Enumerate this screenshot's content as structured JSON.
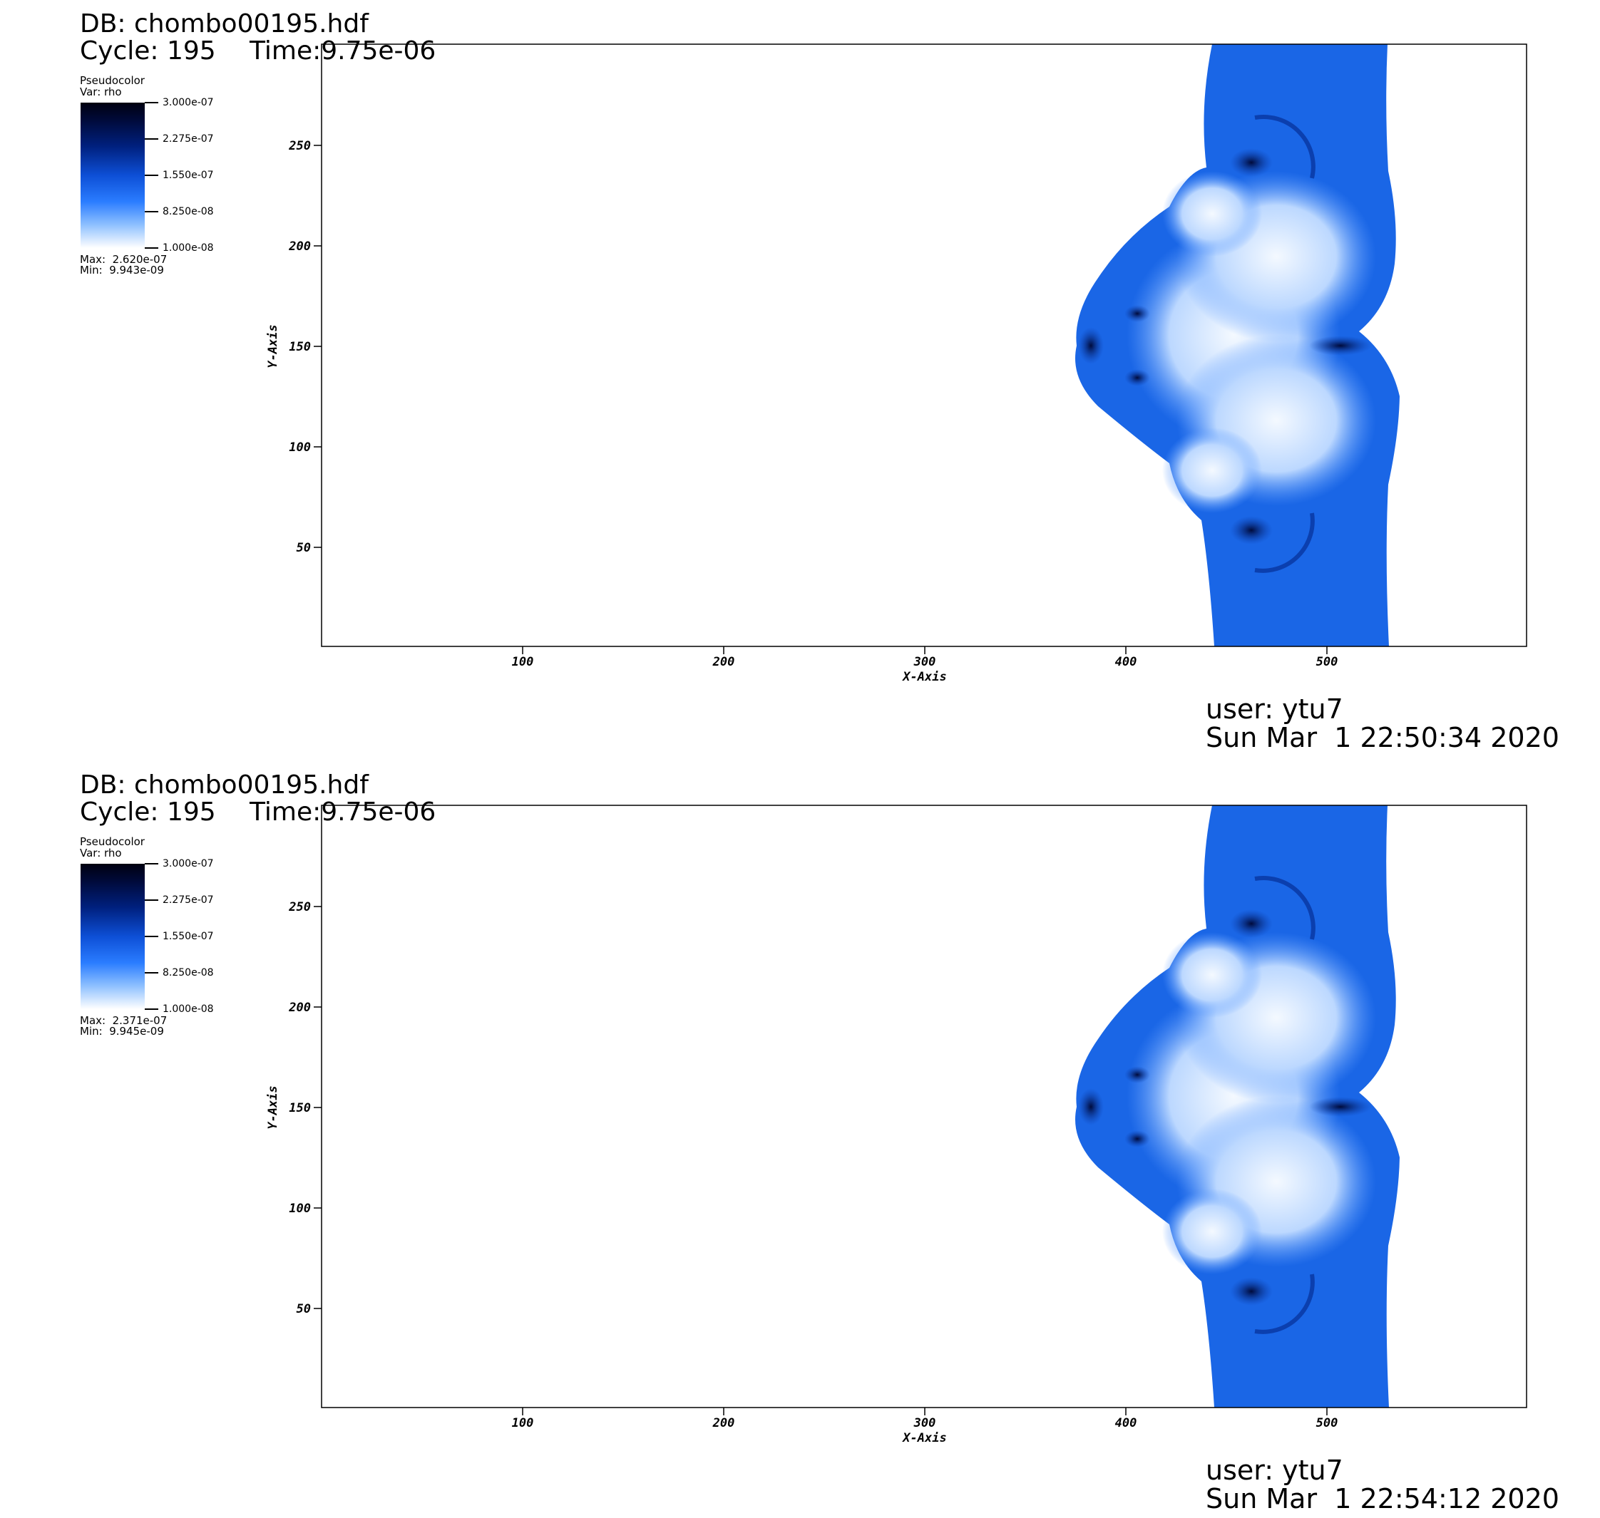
{
  "panels": [
    {
      "db": "DB: chombo00195.hdf",
      "cycle": "Cycle: 195",
      "time": "Time:9.75e-06",
      "legend": {
        "title": "Pseudocolor",
        "var": "Var: rho",
        "ticks": [
          "3.000e-07",
          "2.275e-07",
          "1.550e-07",
          "8.250e-08",
          "1.000e-08"
        ],
        "max": "Max:  2.620e-07",
        "min": "Min:  9.943e-09"
      },
      "user": "user: ytu7",
      "date": "Sun Mar  1 22:50:34 2020"
    },
    {
      "db": "DB: chombo00195.hdf",
      "cycle": "Cycle: 195",
      "time": "Time:9.75e-06",
      "legend": {
        "title": "Pseudocolor",
        "var": "Var: rho",
        "ticks": [
          "3.000e-07",
          "2.275e-07",
          "1.550e-07",
          "8.250e-08",
          "1.000e-08"
        ],
        "max": "Max:  2.371e-07",
        "min": "Min:  9.945e-09"
      },
      "user": "user: ytu7",
      "date": "Sun Mar  1 22:54:12 2020"
    }
  ],
  "axes": {
    "xlabel": "X-Axis",
    "ylabel": "Y-Axis",
    "xticks": [
      "100",
      "200",
      "300",
      "400",
      "500"
    ],
    "yticks": [
      "250",
      "200",
      "150",
      "100",
      "50"
    ]
  },
  "colors": {
    "cmap_dark": "#000010",
    "cmap_mid": "#0d4fd6",
    "cmap_light": "#ffffff",
    "field_blue": "#1a66e6"
  }
}
